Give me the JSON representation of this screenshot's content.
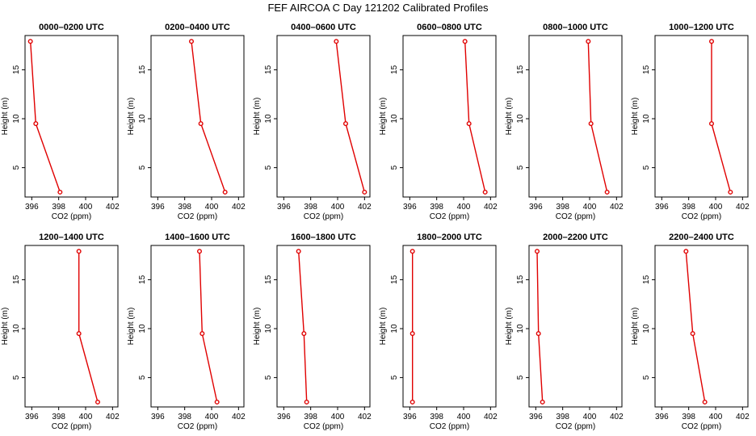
{
  "figure": {
    "title": "FEF AIRCOA C  Day 121202  Calibrated Profiles"
  },
  "chart_data": [
    {
      "type": "line",
      "title": "0000–0200 UTC",
      "xlabel": "CO2 (ppm)",
      "ylabel": "Height (m)",
      "xlim": [
        395.5,
        402.4
      ],
      "ylim": [
        2,
        18.5
      ],
      "xticks": [
        396,
        398,
        400,
        402
      ],
      "yticks": [
        5,
        10,
        15
      ],
      "heights": [
        17.9,
        9.5,
        2.5
      ],
      "values": [
        395.9,
        396.3,
        398.1
      ],
      "color": "#e00000"
    },
    {
      "type": "line",
      "title": "0200–0400 UTC",
      "xlabel": "CO2 (ppm)",
      "ylabel": "Height (m)",
      "xlim": [
        395.5,
        402.4
      ],
      "ylim": [
        2,
        18.5
      ],
      "xticks": [
        396,
        398,
        400,
        402
      ],
      "yticks": [
        5,
        10,
        15
      ],
      "heights": [
        17.9,
        9.5,
        2.5
      ],
      "values": [
        398.5,
        399.2,
        401.0
      ],
      "color": "#e00000"
    },
    {
      "type": "line",
      "title": "0400–0600 UTC",
      "xlabel": "CO2 (ppm)",
      "ylabel": "Height (m)",
      "xlim": [
        395.5,
        402.4
      ],
      "ylim": [
        2,
        18.5
      ],
      "xticks": [
        396,
        398,
        400,
        402
      ],
      "yticks": [
        5,
        10,
        15
      ],
      "heights": [
        17.9,
        9.5,
        2.5
      ],
      "values": [
        399.9,
        400.6,
        402.0
      ],
      "color": "#e00000"
    },
    {
      "type": "line",
      "title": "0600–0800 UTC",
      "xlabel": "CO2 (ppm)",
      "ylabel": "Height (m)",
      "xlim": [
        395.5,
        402.4
      ],
      "ylim": [
        2,
        18.5
      ],
      "xticks": [
        396,
        398,
        400,
        402
      ],
      "yticks": [
        5,
        10,
        15
      ],
      "heights": [
        17.9,
        9.5,
        2.5
      ],
      "values": [
        400.1,
        400.4,
        401.6
      ],
      "color": "#e00000"
    },
    {
      "type": "line",
      "title": "0800–1000 UTC",
      "xlabel": "CO2 (ppm)",
      "ylabel": "Height (m)",
      "xlim": [
        395.5,
        402.4
      ],
      "ylim": [
        2,
        18.5
      ],
      "xticks": [
        396,
        398,
        400,
        402
      ],
      "yticks": [
        5,
        10,
        15
      ],
      "heights": [
        17.9,
        9.5,
        2.5
      ],
      "values": [
        399.9,
        400.1,
        401.3
      ],
      "color": "#e00000"
    },
    {
      "type": "line",
      "title": "1000–1200 UTC",
      "xlabel": "CO2 (ppm)",
      "ylabel": "Height (m)",
      "xlim": [
        395.5,
        402.4
      ],
      "ylim": [
        2,
        18.5
      ],
      "xticks": [
        396,
        398,
        400,
        402
      ],
      "yticks": [
        5,
        10,
        15
      ],
      "heights": [
        17.9,
        9.5,
        2.5
      ],
      "values": [
        399.7,
        399.7,
        401.1
      ],
      "color": "#e00000"
    },
    {
      "type": "line",
      "title": "1200–1400 UTC",
      "xlabel": "CO2 (ppm)",
      "ylabel": "Height (m)",
      "xlim": [
        395.5,
        402.4
      ],
      "ylim": [
        2,
        18.5
      ],
      "xticks": [
        396,
        398,
        400,
        402
      ],
      "yticks": [
        5,
        10,
        15
      ],
      "heights": [
        17.9,
        9.5,
        2.5
      ],
      "values": [
        399.5,
        399.5,
        400.9
      ],
      "color": "#e00000"
    },
    {
      "type": "line",
      "title": "1400–1600 UTC",
      "xlabel": "CO2 (ppm)",
      "ylabel": "Height (m)",
      "xlim": [
        395.5,
        402.4
      ],
      "ylim": [
        2,
        18.5
      ],
      "xticks": [
        396,
        398,
        400,
        402
      ],
      "yticks": [
        5,
        10,
        15
      ],
      "heights": [
        17.9,
        9.5,
        2.5
      ],
      "values": [
        399.1,
        399.3,
        400.4
      ],
      "color": "#e00000"
    },
    {
      "type": "line",
      "title": "1600–1800 UTC",
      "xlabel": "CO2 (ppm)",
      "ylabel": "Height (m)",
      "xlim": [
        395.5,
        402.4
      ],
      "ylim": [
        2,
        18.5
      ],
      "xticks": [
        396,
        398,
        400,
        402
      ],
      "yticks": [
        5,
        10,
        15
      ],
      "heights": [
        17.9,
        9.5,
        2.5
      ],
      "values": [
        397.1,
        397.5,
        397.7
      ],
      "color": "#e00000"
    },
    {
      "type": "line",
      "title": "1800–2000 UTC",
      "xlabel": "CO2 (ppm)",
      "ylabel": "Height (m)",
      "xlim": [
        395.5,
        402.4
      ],
      "ylim": [
        2,
        18.5
      ],
      "xticks": [
        396,
        398,
        400,
        402
      ],
      "yticks": [
        5,
        10,
        15
      ],
      "heights": [
        17.9,
        9.5,
        2.5
      ],
      "values": [
        396.2,
        396.2,
        396.2
      ],
      "color": "#e00000"
    },
    {
      "type": "line",
      "title": "2000–2200 UTC",
      "xlabel": "CO2 (ppm)",
      "ylabel": "Height (m)",
      "xlim": [
        395.5,
        402.4
      ],
      "ylim": [
        2,
        18.5
      ],
      "xticks": [
        396,
        398,
        400,
        402
      ],
      "yticks": [
        5,
        10,
        15
      ],
      "heights": [
        17.9,
        9.5,
        2.5
      ],
      "values": [
        396.1,
        396.2,
        396.5
      ],
      "color": "#e00000"
    },
    {
      "type": "line",
      "title": "2200–2400 UTC",
      "xlabel": "CO2 (ppm)",
      "ylabel": "Height (m)",
      "xlim": [
        395.5,
        402.4
      ],
      "ylim": [
        2,
        18.5
      ],
      "xticks": [
        396,
        398,
        400,
        402
      ],
      "yticks": [
        5,
        10,
        15
      ],
      "heights": [
        17.9,
        9.5,
        2.5
      ],
      "values": [
        397.8,
        398.3,
        399.2
      ],
      "color": "#e00000"
    }
  ]
}
